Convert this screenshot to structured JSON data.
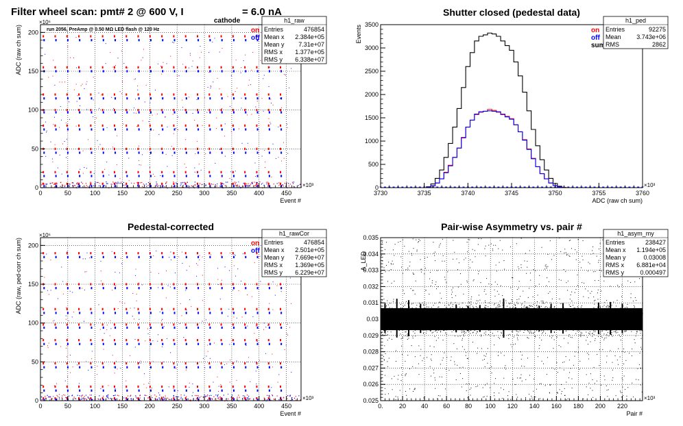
{
  "page": {
    "main_title": "Filter wheel scan: pmt#   2 @   600 V, I",
    "main_title_sub": "cathode",
    "main_title_suffix": "= 6.0 nA"
  },
  "chart_data": [
    {
      "id": "raw",
      "type": "scatter",
      "title": "",
      "annotation": "run 2056, PreAmp @ 0.50 MΩ   LED flash @  120 Hz",
      "xlabel": "Event #",
      "ylabel": "ADC (raw ch sum)",
      "x_exponent": "×10³",
      "y_exponent": "×10⁶",
      "xlim": [
        0,
        476.854
      ],
      "ylim": [
        0,
        210
      ],
      "xticks": [
        0,
        50,
        100,
        150,
        200,
        250,
        300,
        350,
        400,
        450
      ],
      "yticks": [
        0,
        50,
        100,
        150,
        200
      ],
      "grid": true,
      "legend": [
        {
          "label": "on",
          "color": "#ff0000"
        },
        {
          "label": "off",
          "color": "#0000ff"
        }
      ],
      "stats": {
        "name": "h1_raw",
        "rows": [
          [
            "Entries",
            "476854"
          ],
          [
            "Mean x",
            "2.384e+05"
          ],
          [
            "Mean y",
            "7.31e+07"
          ],
          [
            "RMS x",
            "1.377e+05"
          ],
          [
            "RMS y",
            "6.338e+07"
          ]
        ]
      },
      "on_levels": [
        5,
        20,
        50,
        80,
        100,
        120,
        155,
        195
      ],
      "off_levels": [
        2,
        15,
        45,
        75,
        97,
        115,
        150,
        190
      ],
      "period": 21.7
    },
    {
      "id": "ped",
      "type": "line",
      "title": "Shutter closed (pedestal data)",
      "xlabel": "ADC (raw ch sum)",
      "ylabel": "Events",
      "x_exponent": "×10³",
      "xlim": [
        3730,
        3760
      ],
      "ylim": [
        0,
        3500
      ],
      "xticks": [
        3730,
        3735,
        3740,
        3745,
        3750,
        3755,
        3760
      ],
      "yticks": [
        0,
        500,
        1000,
        1500,
        2000,
        2500,
        3000,
        3500
      ],
      "grid": false,
      "legend": [
        {
          "label": "on",
          "color": "#ff0000"
        },
        {
          "label": "off",
          "color": "#0000ff"
        },
        {
          "label": "sum",
          "color": "#000000"
        }
      ],
      "stats": {
        "name": "h1_ped",
        "rows": [
          [
            "Entries",
            "92275"
          ],
          [
            "Mean",
            "3.743e+06"
          ],
          [
            "RMS",
            "2862"
          ]
        ]
      },
      "series": [
        {
          "name": "sum",
          "color": "#000000",
          "x": [
            3735.5,
            3736,
            3736.5,
            3737,
            3737.5,
            3738,
            3738.5,
            3739,
            3739.5,
            3740,
            3740.5,
            3741,
            3741.5,
            3742,
            3742.5,
            3743,
            3743.5,
            3744,
            3744.5,
            3745,
            3745.5,
            3746,
            3746.5,
            3747,
            3747.5,
            3748,
            3748.5,
            3749,
            3749.5,
            3750,
            3750.5,
            3751
          ],
          "y": [
            20,
            80,
            200,
            380,
            650,
            950,
            1300,
            1700,
            2150,
            2600,
            2900,
            3150,
            3250,
            3280,
            3320,
            3300,
            3250,
            3150,
            3050,
            2950,
            2700,
            2400,
            2050,
            1650,
            1250,
            900,
            600,
            380,
            200,
            90,
            30,
            5
          ]
        },
        {
          "name": "on",
          "color": "#ff0000",
          "x": [
            3735.5,
            3736,
            3736.5,
            3737,
            3737.5,
            3738,
            3738.5,
            3739,
            3739.5,
            3740,
            3740.5,
            3741,
            3741.5,
            3742,
            3742.5,
            3743,
            3743.5,
            3744,
            3744.5,
            3745,
            3745.5,
            3746,
            3746.5,
            3747,
            3747.5,
            3748,
            3748.5,
            3749,
            3749.5,
            3750,
            3750.5,
            3751
          ],
          "y": [
            10,
            40,
            100,
            190,
            330,
            480,
            650,
            850,
            1080,
            1300,
            1450,
            1570,
            1620,
            1640,
            1680,
            1660,
            1620,
            1580,
            1530,
            1480,
            1350,
            1200,
            1030,
            830,
            630,
            450,
            300,
            190,
            100,
            45,
            15,
            3
          ]
        },
        {
          "name": "off",
          "color": "#0000ff",
          "x": [
            3735.5,
            3736,
            3736.5,
            3737,
            3737.5,
            3738,
            3738.5,
            3739,
            3739.5,
            3740,
            3740.5,
            3741,
            3741.5,
            3742,
            3742.5,
            3743,
            3743.5,
            3744,
            3744.5,
            3745,
            3745.5,
            3746,
            3746.5,
            3747,
            3747.5,
            3748,
            3748.5,
            3749,
            3749.5,
            3750,
            3750.5,
            3751
          ],
          "y": [
            10,
            40,
            100,
            190,
            320,
            470,
            650,
            850,
            1070,
            1300,
            1450,
            1580,
            1630,
            1640,
            1650,
            1640,
            1630,
            1570,
            1520,
            1470,
            1350,
            1200,
            1020,
            820,
            620,
            450,
            300,
            190,
            100,
            45,
            15,
            2
          ]
        }
      ]
    },
    {
      "id": "rawcor",
      "type": "scatter",
      "title": "Pedestal-corrected",
      "xlabel": "Event #",
      "ylabel": "ADC (raw, ped-corr ch sum)",
      "x_exponent": "×10³",
      "y_exponent": "×10⁶",
      "xlim": [
        0,
        476.854
      ],
      "ylim": [
        0,
        210
      ],
      "xticks": [
        0,
        50,
        100,
        150,
        200,
        250,
        300,
        350,
        400,
        450
      ],
      "yticks": [
        0,
        50,
        100,
        150,
        200
      ],
      "grid": true,
      "legend": [
        {
          "label": "on",
          "color": "#ff0000"
        },
        {
          "label": "off",
          "color": "#0000ff"
        }
      ],
      "stats": {
        "name": "h1_rawCor",
        "rows": [
          [
            "Entries",
            "476854"
          ],
          [
            "Mean x",
            "2.501e+05"
          ],
          [
            "Mean y",
            "7.669e+07"
          ],
          [
            "RMS x",
            "1.369e+05"
          ],
          [
            "RMS y",
            "6.229e+07"
          ]
        ]
      },
      "on_levels": [
        3,
        18,
        48,
        78,
        98,
        118,
        150,
        190
      ],
      "off_levels": [
        1,
        13,
        43,
        73,
        94,
        113,
        145,
        185
      ],
      "period": 21.7
    },
    {
      "id": "asym",
      "type": "scatter",
      "title": "Pair-wise Asymmetry vs. pair #",
      "xlabel": "Pair #",
      "ylabel": "A_LED",
      "x_exponent": "×10³",
      "xlim": [
        0,
        238.427
      ],
      "ylim": [
        0.025,
        0.035
      ],
      "xticks": [
        0,
        20,
        40,
        60,
        80,
        100,
        120,
        140,
        160,
        180,
        200,
        220
      ],
      "yticks": [
        0.025,
        0.026,
        0.027,
        0.028,
        0.029,
        0.03,
        0.031,
        0.032,
        0.033,
        0.034,
        0.035
      ],
      "grid": true,
      "stats": {
        "name": "h1_asym_my",
        "rows": [
          [
            "Entries",
            "238427"
          ],
          [
            "Mean x",
            "1.194e+05"
          ],
          [
            "Mean y",
            "0.03008"
          ],
          [
            "RMS x",
            "6.881e+04"
          ],
          [
            "RMS y",
            "0.000497"
          ]
        ]
      },
      "band_center": 0.03,
      "band_halfwidth": 0.0009
    }
  ]
}
